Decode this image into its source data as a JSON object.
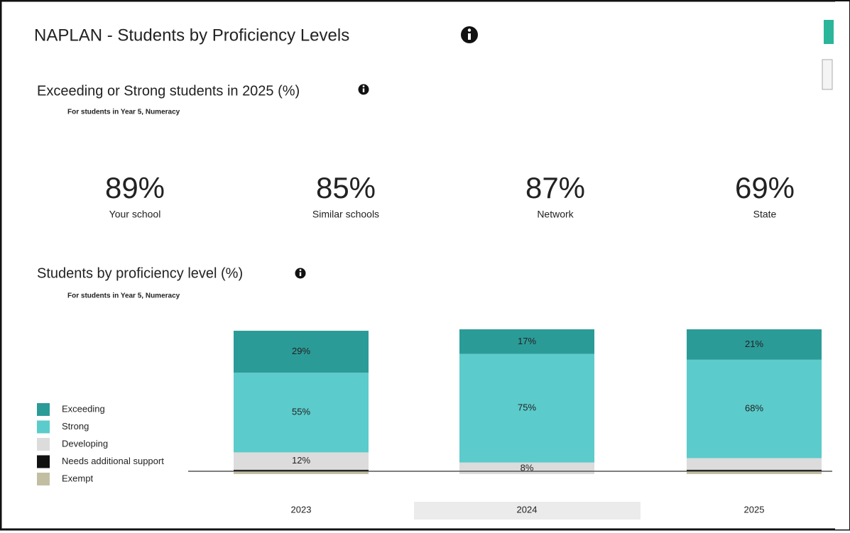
{
  "header": {
    "title": "NAPLAN - Students by Proficiency Levels"
  },
  "summary": {
    "title": "Exceeding or Strong students in 2025 (%)",
    "subtitle": "For students in Year 5, Numeracy",
    "kpis": [
      {
        "label": "Your school",
        "value": 89,
        "value_label": "89%",
        "color": "#f39a2c"
      },
      {
        "label": "Similar schools",
        "value": 85,
        "value_label": "85%",
        "color": "#8b1fa8"
      },
      {
        "label": "Network",
        "value": 87,
        "value_label": "87%",
        "color": "#6ec6ea"
      },
      {
        "label": "State",
        "value": 69,
        "value_label": "69%",
        "color": "#111111"
      }
    ]
  },
  "chart_data": {
    "type": "stacked_bar",
    "title": "Students by proficiency level (%)",
    "subtitle": "For students in Year 5, Numeracy",
    "categories": [
      "2023",
      "2024",
      "2025"
    ],
    "highlight_category": 1,
    "series": [
      {
        "name": "Exempt",
        "color": "#c2bea2",
        "values": [
          2,
          0,
          2
        ],
        "value_labels": [
          null,
          null,
          null
        ]
      },
      {
        "name": "Needs additional support",
        "color": "#111111",
        "values": [
          1,
          0,
          1
        ],
        "value_labels": [
          null,
          null,
          null
        ]
      },
      {
        "name": "Developing",
        "color": "#dcdcdc",
        "values": [
          12,
          8,
          8
        ],
        "value_labels": [
          "12%",
          "8%",
          null
        ]
      },
      {
        "name": "Strong",
        "color": "#5ccbcb",
        "values": [
          55,
          75,
          68
        ],
        "value_labels": [
          "55%",
          "75%",
          "68%"
        ]
      },
      {
        "name": "Exceeding",
        "color": "#2b9b98",
        "values": [
          29,
          17,
          21
        ],
        "value_labels": [
          "29%",
          "17%",
          "21%"
        ]
      }
    ]
  }
}
